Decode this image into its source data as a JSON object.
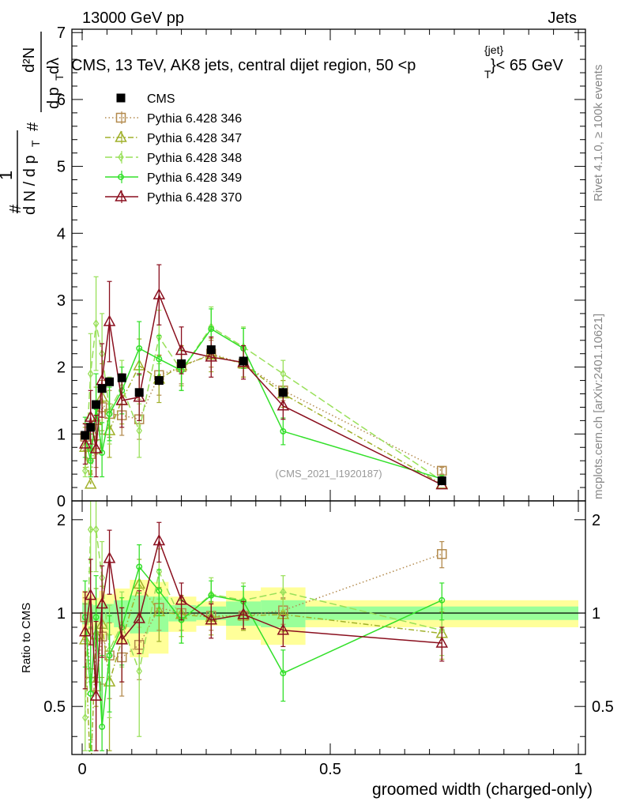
{
  "header": {
    "left": "13000 GeV pp",
    "right": "Jets"
  },
  "side_labels": {
    "rivet": "Rivet 4.1.0, ≥ 100k events",
    "mcplots": "mcplots.cern.ch [arXiv:2401.10621]"
  },
  "main_title": "CMS, 13 TeV, AK8 jets, central dijet region, 50 <p",
  "main_title_sup": "{jet}",
  "main_title_sub": "T",
  "main_title_end": "}< 65 GeV",
  "ylabel_main": {
    "one": "1",
    "dN": "d N / d p",
    "dN_sub": "T",
    "hash": "#",
    "num": "d²N",
    "den": "d p",
    "den_sub": "T",
    "den_end": " dλ"
  },
  "watermark": "(CMS_2021_I1920187)",
  "ratio_ylabel": "Ratio to CMS",
  "xlabel": "groomed width (charged-only)",
  "colors": {
    "cms": "#000000",
    "p346": "#b38a4d",
    "p347": "#a0b02a",
    "p348": "#99e05a",
    "p349": "#33e02a",
    "p370": "#8a0f1e",
    "band_yellow": "#ffff99",
    "band_green": "#99ff99"
  },
  "chart_data": [
    {
      "type": "line",
      "panel": "main",
      "xlim": [
        0,
        1
      ],
      "ylim": [
        0,
        7.05
      ],
      "yticks": [
        0,
        1,
        2,
        3,
        4,
        5,
        6,
        7
      ],
      "ytick_labels": [
        "0",
        "1",
        "2",
        "3",
        "4",
        "5",
        "6",
        "7"
      ],
      "legend_placement": "top-left",
      "series": [
        {
          "key": "cms",
          "name": "CMS",
          "marker": "square",
          "line": "none",
          "x": [
            0.006,
            0.017,
            0.028,
            0.04,
            0.055,
            0.08,
            0.115,
            0.155,
            0.2,
            0.26,
            0.325,
            0.405,
            0.725
          ],
          "y": [
            0.98,
            1.1,
            1.44,
            1.68,
            1.78,
            1.84,
            1.62,
            1.8,
            2.05,
            2.26,
            2.09,
            1.62,
            0.3
          ],
          "err": [
            0.06,
            0.06,
            0.06,
            0.06,
            0.06,
            0.06,
            0.06,
            0.07,
            0.07,
            0.07,
            0.07,
            0.07,
            0.02
          ]
        },
        {
          "key": "p346",
          "name": "Pythia 6.428 346",
          "marker": "square-open",
          "line": "dotted",
          "x": [
            0.006,
            0.017,
            0.028,
            0.04,
            0.055,
            0.08,
            0.115,
            0.155,
            0.2,
            0.26,
            0.325,
            0.405,
            0.725
          ],
          "y": [
            0.96,
            0.7,
            0.85,
            1.4,
            1.3,
            1.28,
            1.22,
            1.88,
            2.0,
            2.2,
            2.05,
            1.65,
            0.45
          ],
          "err": [
            0.2,
            0.3,
            0.35,
            0.4,
            0.35,
            0.3,
            0.3,
            0.3,
            0.25,
            0.2,
            0.2,
            0.15,
            0.05
          ]
        },
        {
          "key": "p347",
          "name": "Pythia 6.428 347",
          "marker": "triangle-open",
          "line": "dashdot",
          "x": [
            0.006,
            0.017,
            0.028,
            0.04,
            0.055,
            0.08,
            0.115,
            0.155,
            0.2,
            0.26,
            0.325,
            0.405,
            0.725
          ],
          "y": [
            0.8,
            0.25,
            1.2,
            1.55,
            1.05,
            1.5,
            2.02,
            1.82,
            2.02,
            2.18,
            2.05,
            1.6,
            0.25
          ],
          "err": [
            0.3,
            0.35,
            0.5,
            0.5,
            0.4,
            0.35,
            0.4,
            0.35,
            0.3,
            0.25,
            0.2,
            0.2,
            0.05
          ]
        },
        {
          "key": "p348",
          "name": "Pythia 6.428 348",
          "marker": "diamond-open",
          "line": "longdash",
          "x": [
            0.006,
            0.017,
            0.028,
            0.04,
            0.055,
            0.08,
            0.115,
            0.155,
            0.2,
            0.26,
            0.325,
            0.405,
            0.725
          ],
          "y": [
            0.45,
            1.9,
            2.65,
            2.2,
            1.35,
            1.7,
            1.05,
            2.45,
            1.95,
            2.6,
            2.3,
            1.9,
            0.3
          ],
          "err": [
            0.4,
            0.6,
            0.7,
            0.6,
            0.5,
            0.4,
            0.4,
            0.4,
            0.3,
            0.3,
            0.3,
            0.2,
            0.05
          ]
        },
        {
          "key": "p349",
          "name": "Pythia 6.428 349",
          "marker": "circle-open",
          "line": "solid",
          "x": [
            0.006,
            0.017,
            0.028,
            0.04,
            0.055,
            0.08,
            0.115,
            0.155,
            0.2,
            0.26,
            0.325,
            0.405,
            0.725
          ],
          "y": [
            0.95,
            0.6,
            1.4,
            0.72,
            1.3,
            1.65,
            2.28,
            2.12,
            1.95,
            2.57,
            2.28,
            1.04,
            0.33
          ],
          "err": [
            0.3,
            0.4,
            0.5,
            0.45,
            0.4,
            0.35,
            0.4,
            0.35,
            0.3,
            0.3,
            0.3,
            0.2,
            0.05
          ]
        },
        {
          "key": "p370",
          "name": "Pythia 6.428 370",
          "marker": "triangle-open",
          "line": "solid",
          "x": [
            0.006,
            0.017,
            0.028,
            0.04,
            0.055,
            0.08,
            0.115,
            0.155,
            0.2,
            0.26,
            0.325,
            0.405,
            0.725
          ],
          "y": [
            0.85,
            1.25,
            0.78,
            1.8,
            2.68,
            1.5,
            1.55,
            3.08,
            2.25,
            2.15,
            2.07,
            1.42,
            0.24
          ],
          "err": [
            0.3,
            0.4,
            0.5,
            0.55,
            0.6,
            0.4,
            0.35,
            0.45,
            0.35,
            0.3,
            0.25,
            0.2,
            0.05
          ]
        }
      ]
    },
    {
      "type": "line",
      "panel": "ratio",
      "xlim": [
        0,
        1
      ],
      "ylim": [
        0.35,
        2.3
      ],
      "yticks": [
        0.5,
        1,
        2
      ],
      "ytick_labels": [
        "0.5",
        "1",
        "2"
      ],
      "xticks": [
        0,
        0.5,
        1
      ],
      "xtick_labels": [
        "0",
        "0.5",
        "1"
      ],
      "bands": {
        "edges": [
          0,
          0.011,
          0.022,
          0.034,
          0.046,
          0.064,
          0.096,
          0.134,
          0.174,
          0.23,
          0.29,
          0.36,
          0.45,
          1.0
        ],
        "yellow_low": [
          0.82,
          0.85,
          0.88,
          0.82,
          0.85,
          0.8,
          0.72,
          0.74,
          0.87,
          0.91,
          0.82,
          0.79,
          0.9
        ],
        "yellow_high": [
          1.18,
          1.15,
          1.12,
          1.18,
          1.15,
          1.2,
          1.28,
          1.26,
          1.13,
          1.09,
          1.18,
          1.21,
          1.1
        ],
        "green_low": [
          0.92,
          0.93,
          0.94,
          0.92,
          0.93,
          0.9,
          0.86,
          0.87,
          0.94,
          0.95,
          0.91,
          0.9,
          0.95
        ],
        "green_high": [
          1.08,
          1.07,
          1.06,
          1.08,
          1.07,
          1.1,
          1.14,
          1.13,
          1.06,
          1.05,
          1.09,
          1.1,
          1.05
        ]
      },
      "series": [
        {
          "key": "p346",
          "name": "Pythia 6.428 346",
          "x": [
            0.006,
            0.017,
            0.028,
            0.04,
            0.055,
            0.08,
            0.115,
            0.155,
            0.2,
            0.26,
            0.325,
            0.405,
            0.725
          ],
          "y": [
            0.97,
            0.64,
            0.58,
            0.84,
            0.73,
            0.72,
            0.79,
            1.04,
            1.0,
            0.98,
            0.98,
            1.02,
            1.55
          ],
          "err": [
            0.15,
            0.25,
            0.25,
            0.25,
            0.2,
            0.18,
            0.18,
            0.16,
            0.12,
            0.1,
            0.1,
            0.1,
            0.15
          ]
        },
        {
          "key": "p347",
          "name": "Pythia 6.428 347",
          "x": [
            0.006,
            0.017,
            0.028,
            0.04,
            0.055,
            0.08,
            0.115,
            0.155,
            0.2,
            0.26,
            0.325,
            0.405,
            0.725
          ],
          "y": [
            0.82,
            0.3,
            0.85,
            0.92,
            0.6,
            0.82,
            1.24,
            1.01,
            0.99,
            0.97,
            0.98,
            0.99,
            0.86
          ],
          "err": [
            0.25,
            0.3,
            0.35,
            0.3,
            0.25,
            0.22,
            0.25,
            0.2,
            0.15,
            0.12,
            0.1,
            0.12,
            0.15
          ]
        },
        {
          "key": "p348",
          "name": "Pythia 6.428 348",
          "x": [
            0.006,
            0.017,
            0.028,
            0.04,
            0.055,
            0.08,
            0.115,
            0.155,
            0.2,
            0.26,
            0.325,
            0.405,
            0.725
          ],
          "y": [
            0.46,
            1.86,
            1.86,
            1.3,
            0.76,
            0.92,
            0.65,
            1.36,
            0.95,
            1.15,
            1.1,
            1.17,
            0.88
          ],
          "err": [
            0.35,
            0.5,
            0.5,
            0.4,
            0.3,
            0.25,
            0.25,
            0.25,
            0.15,
            0.15,
            0.15,
            0.15,
            0.15
          ]
        },
        {
          "key": "p349",
          "name": "Pythia 6.428 349",
          "x": [
            0.006,
            0.017,
            0.028,
            0.04,
            0.055,
            0.08,
            0.115,
            0.155,
            0.2,
            0.26,
            0.325,
            0.405,
            0.725
          ],
          "y": [
            0.97,
            0.55,
            0.97,
            0.43,
            0.73,
            0.9,
            1.41,
            1.18,
            0.95,
            1.14,
            1.09,
            0.64,
            1.1
          ],
          "err": [
            0.3,
            0.35,
            0.35,
            0.3,
            0.25,
            0.22,
            0.25,
            0.2,
            0.15,
            0.13,
            0.13,
            0.12,
            0.15
          ]
        },
        {
          "key": "p370",
          "name": "Pythia 6.428 370",
          "x": [
            0.006,
            0.017,
            0.028,
            0.04,
            0.055,
            0.08,
            0.115,
            0.155,
            0.2,
            0.26,
            0.325,
            0.405,
            0.725
          ],
          "y": [
            0.87,
            1.14,
            0.54,
            1.07,
            1.5,
            0.82,
            0.96,
            1.71,
            1.1,
            0.95,
            0.99,
            0.88,
            0.8
          ],
          "err": [
            0.3,
            0.35,
            0.4,
            0.35,
            0.35,
            0.22,
            0.22,
            0.25,
            0.15,
            0.12,
            0.1,
            0.1,
            0.1
          ]
        }
      ]
    }
  ]
}
